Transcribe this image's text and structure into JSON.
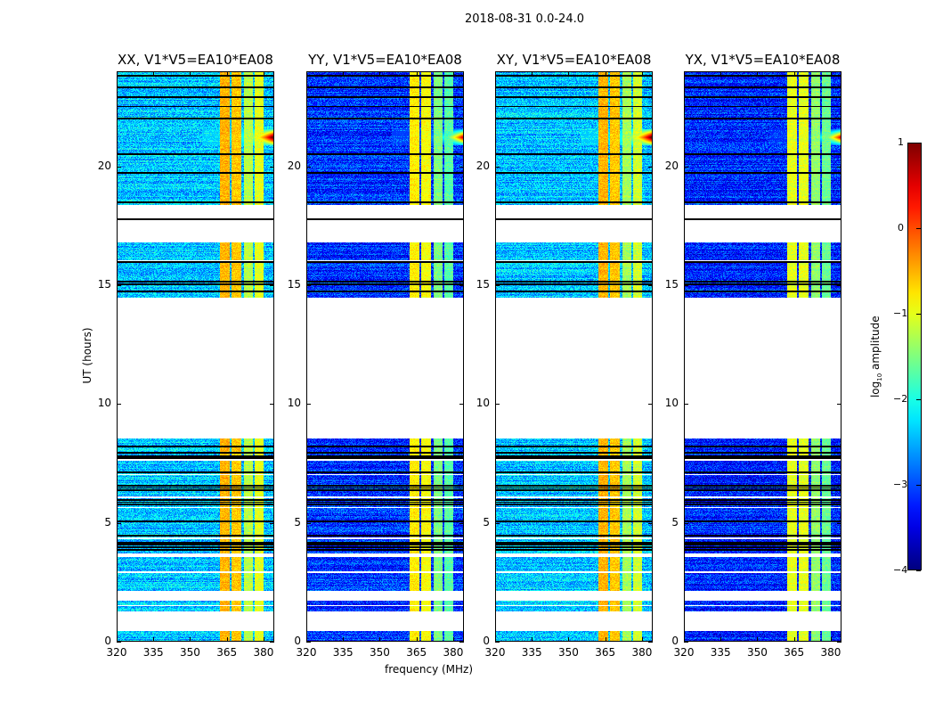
{
  "suptitle": "2018-08-31 0.0-24.0",
  "chart_data": {
    "type": "heatmap",
    "xlabel": "frequency (MHz)",
    "ylabel": "UT (hours)",
    "xlim": [
      320,
      384.4
    ],
    "ylim": [
      0,
      24
    ],
    "xticks": [
      "320",
      "335",
      "350",
      "365",
      "380"
    ],
    "xtick_values": [
      320,
      335,
      350,
      365,
      380
    ],
    "yticks": [
      "0",
      "5",
      "10",
      "15",
      "20"
    ],
    "ytick_values": [
      0,
      5,
      10,
      15,
      20
    ],
    "colormap": "jet",
    "colorbar": {
      "label_prefix": "log",
      "label_sub": "10",
      "label_suffix": " amplitude",
      "range": [
        -4,
        1
      ],
      "ticks": [
        "1",
        "0",
        "−1",
        "−2",
        "−3",
        "−4"
      ],
      "tick_values": [
        1,
        0,
        -1,
        -2,
        -3,
        -4
      ]
    },
    "data_segments_hours": [
      [
        0,
        0.4
      ],
      [
        1.25,
        1.45
      ],
      [
        1.5,
        1.7
      ],
      [
        2.1,
        2.85
      ],
      [
        2.95,
        3.55
      ],
      [
        3.7,
        4.3
      ],
      [
        4.35,
        5.6
      ],
      [
        5.65,
        6.0
      ],
      [
        6.1,
        7.0
      ],
      [
        7.05,
        7.6
      ],
      [
        7.7,
        8.55
      ],
      [
        14.5,
        15.95
      ],
      [
        16.05,
        16.8
      ],
      [
        18.4,
        24
      ]
    ],
    "flagged_rows_hours": [
      3.85,
      3.95,
      4.05,
      4.15,
      4.45,
      5.05,
      5.75,
      5.85,
      5.95,
      6.35,
      6.45,
      6.55,
      7.1,
      7.7,
      7.8,
      7.95,
      8.2,
      14.75,
      15.05,
      15.15,
      16.0,
      17.8,
      18.5,
      19.75,
      20.55,
      22.05,
      22.55,
      22.95,
      23.35,
      23.85
    ],
    "rfi_bands_mhz": [
      [
        362.5,
        366.5
      ],
      [
        367.2,
        371.2
      ],
      [
        372.2,
        376.0
      ],
      [
        376.8,
        380.5
      ]
    ],
    "flare": {
      "hours": [
        20.9,
        21.6
      ],
      "peak_hours": 21.25,
      "freq_start_mhz": 355
    },
    "panels": [
      {
        "title": "XX, V1*V5=EA10*EA08",
        "baseline_log_amp": -2.4,
        "rfi_log_amp": [
          -0.5,
          -0.6,
          -1.2,
          -1.0
        ]
      },
      {
        "title": "YY, V1*V5=EA10*EA08",
        "baseline_log_amp": -3.1,
        "rfi_log_amp": [
          -0.8,
          -0.9,
          -1.5,
          -1.7
        ]
      },
      {
        "title": "XY, V1*V5=EA10*EA08",
        "baseline_log_amp": -2.4,
        "rfi_log_amp": [
          -0.5,
          -0.6,
          -1.3,
          -1.1
        ]
      },
      {
        "title": "YX, V1*V5=EA10*EA08",
        "baseline_log_amp": -3.2,
        "rfi_log_amp": [
          -1.0,
          -1.0,
          -1.4,
          -1.6
        ]
      }
    ]
  }
}
